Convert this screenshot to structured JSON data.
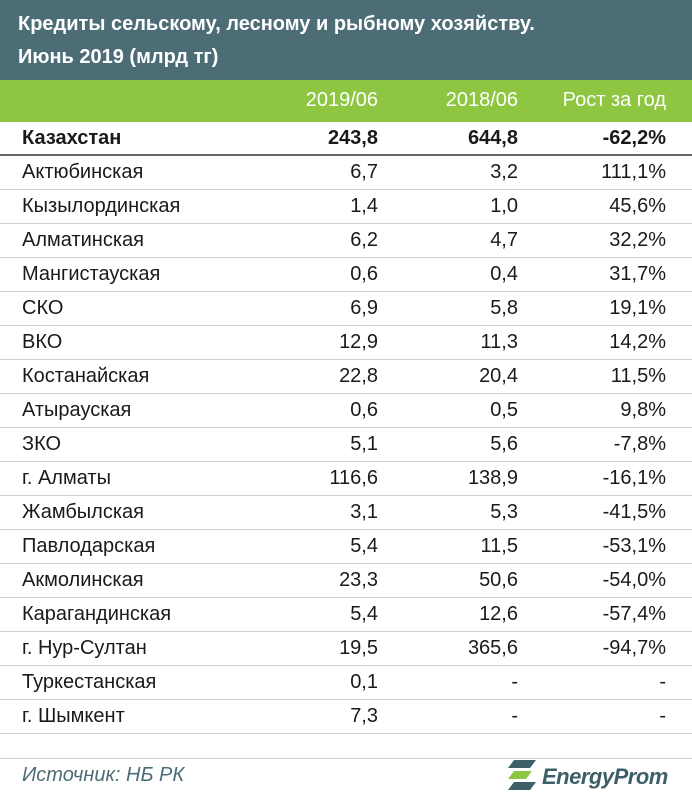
{
  "title_line1": "Кредиты сельскому, лесному и рыбному хозяйству.",
  "title_line2": "Июнь 2019 (млрд тг)",
  "source": "Источник: НБ РК",
  "logo_text": "EnergyProm",
  "colors": {
    "header_bg": "#4d6d76",
    "subheader_bg": "#8ec641",
    "logo_accent": "#8ec641"
  },
  "chart_data": {
    "type": "table",
    "columns": [
      "",
      "2019/06",
      "2018/06",
      "Рост за год"
    ],
    "rows": [
      {
        "name": "Казахстан",
        "v2019": "243,8",
        "v2018": "644,8",
        "growth": "-62,2%",
        "total": true
      },
      {
        "name": "Актюбинская",
        "v2019": "6,7",
        "v2018": "3,2",
        "growth": "111,1%"
      },
      {
        "name": "Кызылординская",
        "v2019": "1,4",
        "v2018": "1,0",
        "growth": "45,6%"
      },
      {
        "name": "Алматинская",
        "v2019": "6,2",
        "v2018": "4,7",
        "growth": "32,2%"
      },
      {
        "name": "Мангистауская",
        "v2019": "0,6",
        "v2018": "0,4",
        "growth": "31,7%"
      },
      {
        "name": "СКО",
        "v2019": "6,9",
        "v2018": "5,8",
        "growth": "19,1%"
      },
      {
        "name": "ВКО",
        "v2019": "12,9",
        "v2018": "11,3",
        "growth": "14,2%"
      },
      {
        "name": "Костанайская",
        "v2019": "22,8",
        "v2018": "20,4",
        "growth": "11,5%"
      },
      {
        "name": "Атырауская",
        "v2019": "0,6",
        "v2018": "0,5",
        "growth": "9,8%"
      },
      {
        "name": "ЗКО",
        "v2019": "5,1",
        "v2018": "5,6",
        "growth": "-7,8%"
      },
      {
        "name": "г. Алматы",
        "v2019": "116,6",
        "v2018": "138,9",
        "growth": "-16,1%"
      },
      {
        "name": "Жамбылская",
        "v2019": "3,1",
        "v2018": "5,3",
        "growth": "-41,5%"
      },
      {
        "name": "Павлодарская",
        "v2019": "5,4",
        "v2018": "11,5",
        "growth": "-53,1%"
      },
      {
        "name": "Акмолинская",
        "v2019": "23,3",
        "v2018": "50,6",
        "growth": "-54,0%"
      },
      {
        "name": "Карагандинская",
        "v2019": "5,4",
        "v2018": "12,6",
        "growth": "-57,4%"
      },
      {
        "name": "г. Нур-Султан",
        "v2019": "19,5",
        "v2018": "365,6",
        "growth": "-94,7%"
      },
      {
        "name": "Туркестанская",
        "v2019": "0,1",
        "v2018": "-",
        "growth": "-"
      },
      {
        "name": "г. Шымкент",
        "v2019": "7,3",
        "v2018": "-",
        "growth": "-"
      }
    ]
  }
}
